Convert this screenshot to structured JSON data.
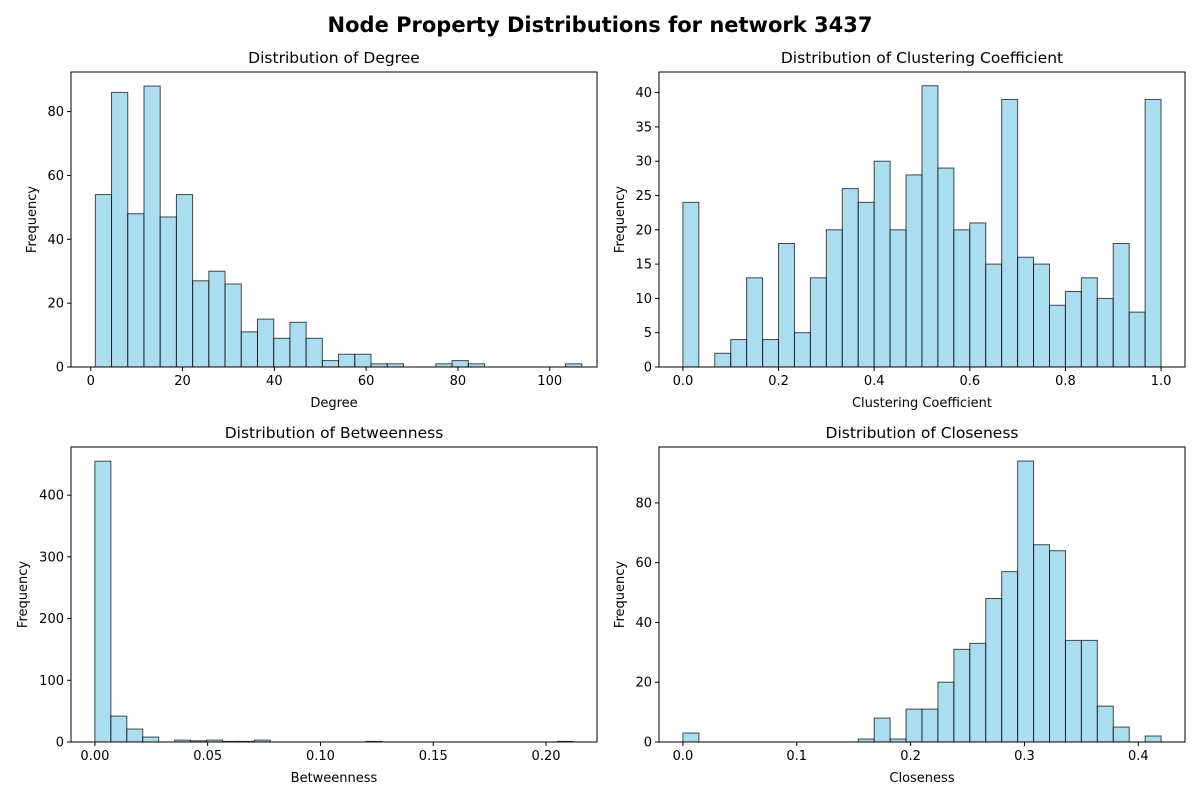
{
  "figure": {
    "suptitle": "Node Property Distributions for network 3437"
  },
  "chart_data": [
    {
      "type": "bar",
      "title": "Distribution of Degree",
      "xlabel": "Degree",
      "ylabel": "Frequency",
      "xlim": [
        -4.3,
        110.3
      ],
      "ylim": [
        0,
        92.4
      ],
      "bin_start": 1,
      "bin_width": 3.533,
      "values": [
        54,
        86,
        48,
        88,
        47,
        54,
        27,
        30,
        26,
        11,
        15,
        9,
        14,
        9,
        2,
        4,
        4,
        1,
        1,
        0,
        0,
        1,
        2,
        1,
        0,
        0,
        0,
        0,
        0,
        1
      ],
      "xticks": [
        0,
        20,
        40,
        60,
        80,
        100
      ],
      "xtick_labels": [
        "0",
        "20",
        "40",
        "60",
        "80",
        "100"
      ],
      "yticks": [
        0,
        20,
        40,
        60,
        80
      ],
      "ytick_labels": [
        "0",
        "20",
        "40",
        "60",
        "80"
      ]
    },
    {
      "type": "bar",
      "title": "Distribution of Clustering Coefficient",
      "xlabel": "Clustering Coefficient",
      "ylabel": "Frequency",
      "xlim": [
        -0.05,
        1.05
      ],
      "ylim": [
        0,
        43
      ],
      "bin_start": 0,
      "bin_width": 0.03333,
      "values": [
        24,
        0,
        2,
        4,
        13,
        4,
        18,
        5,
        13,
        20,
        26,
        24,
        30,
        20,
        28,
        41,
        29,
        20,
        21,
        15,
        39,
        16,
        15,
        9,
        11,
        13,
        10,
        18,
        8,
        39
      ],
      "xticks": [
        0,
        0.2,
        0.4,
        0.6,
        0.8,
        1.0
      ],
      "xtick_labels": [
        "0.0",
        "0.2",
        "0.4",
        "0.6",
        "0.8",
        "1.0"
      ],
      "yticks": [
        0,
        5,
        10,
        15,
        20,
        25,
        30,
        35,
        40
      ],
      "ytick_labels": [
        "0",
        "5",
        "10",
        "15",
        "20",
        "25",
        "30",
        "35",
        "40"
      ]
    },
    {
      "type": "bar",
      "title": "Distribution of Betweenness",
      "xlabel": "Betweenness",
      "ylabel": "Frequency",
      "xlim": [
        -0.0106,
        0.2226
      ],
      "ylim": [
        0,
        478
      ],
      "bin_start": 0,
      "bin_width": 0.00707,
      "values": [
        455,
        42,
        21,
        8,
        0,
        3,
        2,
        3,
        1,
        1,
        3,
        0,
        0,
        0,
        0,
        0,
        0,
        1,
        0,
        0,
        0,
        0,
        0,
        0,
        0,
        0,
        0,
        0,
        0,
        1
      ],
      "xticks": [
        0,
        0.05,
        0.1,
        0.15,
        0.2
      ],
      "xtick_labels": [
        "0.00",
        "0.05",
        "0.10",
        "0.15",
        "0.20"
      ],
      "yticks": [
        0,
        100,
        200,
        300,
        400
      ],
      "ytick_labels": [
        "0",
        "100",
        "200",
        "300",
        "400"
      ]
    },
    {
      "type": "bar",
      "title": "Distribution of Closeness",
      "xlabel": "Closeness",
      "ylabel": "Frequency",
      "xlim": [
        -0.021,
        0.441
      ],
      "ylim": [
        0,
        98.7
      ],
      "bin_start": 0,
      "bin_width": 0.014,
      "values": [
        3,
        0,
        0,
        0,
        0,
        0,
        0,
        0,
        0,
        0,
        0,
        1,
        8,
        1,
        11,
        11,
        20,
        31,
        33,
        48,
        57,
        94,
        66,
        64,
        34,
        34,
        12,
        5,
        0,
        2
      ],
      "xticks": [
        0,
        0.1,
        0.2,
        0.3,
        0.4
      ],
      "xtick_labels": [
        "0.0",
        "0.1",
        "0.2",
        "0.3",
        "0.4"
      ],
      "yticks": [
        0,
        20,
        40,
        60,
        80
      ],
      "ytick_labels": [
        "0",
        "20",
        "40",
        "60",
        "80"
      ]
    }
  ]
}
